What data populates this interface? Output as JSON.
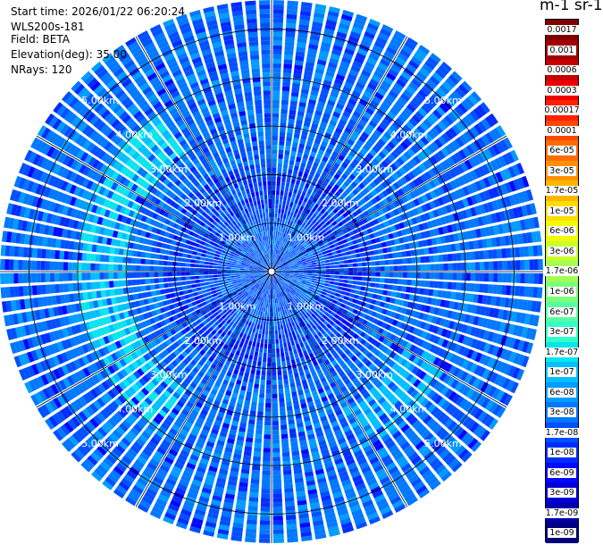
{
  "info": {
    "start_time": "Start time: 2026/01/22 06:20:24",
    "device": "WLS200s-181",
    "field": "Field: BETA",
    "elevation": "Elevation(deg): 35.00",
    "nrays": "NRays: 120"
  },
  "colorbar": {
    "unit_label": "m-1 sr-1",
    "tick_labels": [
      "0.0017",
      "0.001",
      "0.0006",
      "0.0003",
      "0.00017",
      "0.0001",
      "6e-05",
      "3e-05",
      "1.7e-05",
      "1e-05",
      "6e-06",
      "3e-06",
      "1.7e-06",
      "1e-06",
      "6e-07",
      "3e-07",
      "1.7e-07",
      "1e-07",
      "6e-08",
      "3e-08",
      "1.7e-08",
      "1e-08",
      "6e-09",
      "3e-09",
      "1.7e-09",
      "1e-09"
    ],
    "colors": [
      "#7f0000",
      "#a30000",
      "#c80000",
      "#ee0000",
      "#ff2100",
      "#ff4700",
      "#ff6c00",
      "#ff9100",
      "#ffb700",
      "#ffdc00",
      "#f1fc06",
      "#caff2d",
      "#a4ff53",
      "#7dff7a",
      "#57ffa0",
      "#30ffc7",
      "#0ae4ed",
      "#00c0ff",
      "#009cff",
      "#0078ff",
      "#0050ff",
      "#002cff",
      "#0008ff",
      "#0000d6",
      "#0000a8",
      "#000080"
    ]
  },
  "chart_data": {
    "type": "heatmap",
    "projection": "polar",
    "field": "BETA",
    "n_rays": 120,
    "elevation_deg": 35.0,
    "range_rings_km": [
      1.0,
      2.0,
      3.0,
      4.0,
      5.0
    ],
    "ring_labels": [
      "1.00km",
      "2.00km",
      "3.00km",
      "4.00km",
      "5.00km"
    ],
    "max_range_km": 5.6,
    "value_range": [
      1e-09,
      0.0017
    ],
    "log_scale": true,
    "dominant_values": "mostly 3e-08 to 1e-08 (blue), enhanced 1.7e-07 to 1e-07 (cyan) arc on the west side near 3.5 km and patches to the south-east",
    "grid": true
  }
}
